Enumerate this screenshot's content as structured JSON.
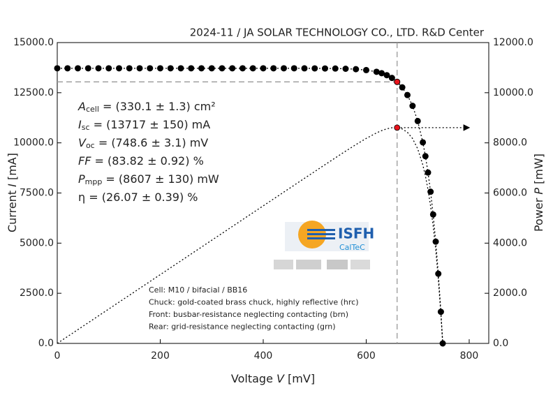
{
  "chart_data": {
    "type": "line",
    "title": "2024-11 / JA SOLAR TECHNOLOGY CO., LTD. R&D Center",
    "x_label": {
      "text": "Voltage ",
      "var": "V",
      "unit": " [mV]"
    },
    "y_label": {
      "text": "Current ",
      "var": "I",
      "unit": " [mA]"
    },
    "y2_label": {
      "text": "Power ",
      "var": "P",
      "unit": " [mW]"
    },
    "x": [
      0,
      20,
      40,
      60,
      80,
      100,
      120,
      140,
      160,
      180,
      200,
      220,
      240,
      260,
      280,
      300,
      320,
      340,
      360,
      380,
      400,
      420,
      440,
      460,
      480,
      500,
      520,
      540,
      560,
      580,
      600,
      620,
      630,
      640,
      650,
      660,
      670,
      680,
      690,
      700,
      710,
      715,
      720,
      725,
      730,
      735,
      740,
      745,
      748.6
    ],
    "series": [
      {
        "color": "#000000",
        "marker": "circle",
        "values": [
          13717,
          13717,
          13717,
          13717,
          13717,
          13717,
          13717,
          13717,
          13717,
          13717,
          13717,
          13717,
          13717,
          13717,
          13717,
          13717,
          13717,
          13717,
          13717,
          13717,
          13717,
          13717,
          13717,
          13717,
          13715,
          13713,
          13710,
          13706,
          13695,
          13673,
          13629,
          13544,
          13473,
          13375,
          13237,
          13041,
          12768,
          12384,
          11845,
          11087,
          10024,
          9334,
          8522,
          7565,
          6426,
          5075,
          3475,
          1577,
          0
        ]
      },
      {
        "color": "#000000",
        "marker": "none",
        "axis": "y2",
        "values": [
          0,
          274.3,
          548.7,
          823.0,
          1097.4,
          1371.7,
          1646.0,
          1920.4,
          2194.7,
          2469.1,
          2743.4,
          3017.7,
          3292.1,
          3566.4,
          3840.8,
          4115.1,
          4389.4,
          4663.8,
          4938.1,
          5212.5,
          5486.8,
          5761.1,
          6035.5,
          6309.8,
          6583.2,
          6856.5,
          7129.2,
          7401.2,
          7669.2,
          7930.3,
          8177.4,
          8397.3,
          8488.0,
          8560.0,
          8604.1,
          8607,
          8554.6,
          8421.1,
          8173.1,
          7760.9,
          7117.0,
          6673.8,
          6135.8,
          5484.6,
          4691.0,
          3730.1,
          2571.5,
          1174.9,
          0
        ]
      }
    ],
    "mpp": {
      "voltage": 660,
      "current": 13041,
      "power": 8607,
      "color": "#e8141c"
    },
    "xlim": [
      0,
      838
    ],
    "ylim": [
      0,
      15000
    ],
    "y2lim": [
      0,
      12000
    ],
    "xticks": [
      0,
      200,
      400,
      600,
      800
    ],
    "yticks": [
      {
        "value": 0,
        "label": "0.0"
      },
      {
        "value": 2500,
        "label": "2500.0"
      },
      {
        "value": 5000,
        "label": "5000.0"
      },
      {
        "value": 7500,
        "label": "7500.0"
      },
      {
        "value": 10000,
        "label": "10000.0"
      },
      {
        "value": 12500,
        "label": "12500.0"
      },
      {
        "value": 15000,
        "label": "15000.0"
      }
    ],
    "y2ticks": [
      {
        "value": 0,
        "label": "0.0"
      },
      {
        "value": 2000,
        "label": "2000.0"
      },
      {
        "value": 4000,
        "label": "4000.0"
      },
      {
        "value": 6000,
        "label": "6000.0"
      },
      {
        "value": 8000,
        "label": "8000.0"
      },
      {
        "value": 10000,
        "label": "10000.0"
      },
      {
        "value": 12000,
        "label": "12000.0"
      }
    ],
    "parameters": [
      {
        "symbol": "A",
        "sub": "cell",
        "value": " = (330.1 ± 1.3) cm²"
      },
      {
        "symbol": "I",
        "sub": "sc",
        "value": " = (13717 ± 150) mA"
      },
      {
        "symbol": "V",
        "sub": "oc",
        "value": " = (748.6 ± 3.1) mV"
      },
      {
        "symbol": "FF",
        "value": " = (83.82 ± 0.92) %"
      },
      {
        "symbol": "P",
        "sub": "mpp",
        "value": " = (8607 ± 130) mW"
      },
      {
        "symbol": "η",
        "value": " = (26.07 ± 0.39) %"
      }
    ],
    "notes": [
      "Cell: M10 / bifacial / BB16",
      "Chuck: gold-coated brass chuck, highly reflective (hrc)",
      "Front: busbar-resistance neglecting contacting (brn)",
      "Rear: grid-resistance neglecting contacting (grn)"
    ],
    "logo": {
      "name": "ISFH",
      "sub": "CalTeC"
    }
  }
}
